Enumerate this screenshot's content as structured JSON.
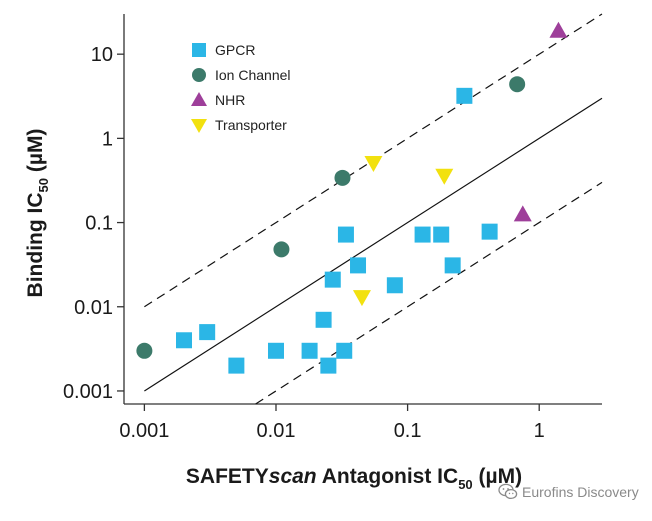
{
  "chart_data": {
    "type": "scatter",
    "xlabel": {
      "prefix": "SAFETY",
      "italic": "scan",
      "middle": " Antagonist IC",
      "sub": "50",
      "suffix": " (µM)"
    },
    "ylabel": {
      "prefix": "Binding IC",
      "sub": "50",
      "suffix": " (µM)"
    },
    "x_scale": "log",
    "y_scale": "log",
    "xlim": [
      0.0007,
      3
    ],
    "ylim": [
      0.0007,
      30
    ],
    "x_ticks": [
      0.001,
      0.01,
      0.1,
      1
    ],
    "x_tick_labels": [
      "0.001",
      "0.01",
      "0.1",
      "1"
    ],
    "y_ticks": [
      0.001,
      0.01,
      0.1,
      1,
      10
    ],
    "y_tick_labels": [
      "0.001",
      "0.01",
      "0.1",
      "1",
      "10"
    ],
    "legend_position": "top-left",
    "reference_lines": [
      {
        "style": "solid",
        "y_over_x": 1
      },
      {
        "style": "dashed",
        "y_over_x": 10
      },
      {
        "style": "dashed",
        "y_over_x": 0.1
      }
    ],
    "series": [
      {
        "name": "GPCR",
        "marker": "square",
        "color": "#2BB6E6",
        "points": [
          [
            0.002,
            0.004
          ],
          [
            0.003,
            0.005
          ],
          [
            0.005,
            0.002
          ],
          [
            0.01,
            0.003
          ],
          [
            0.018,
            0.003
          ],
          [
            0.023,
            0.007
          ],
          [
            0.025,
            0.002
          ],
          [
            0.027,
            0.021
          ],
          [
            0.033,
            0.003
          ],
          [
            0.034,
            0.072
          ],
          [
            0.042,
            0.031
          ],
          [
            0.08,
            0.018
          ],
          [
            0.13,
            0.072
          ],
          [
            0.18,
            0.072
          ],
          [
            0.22,
            0.031
          ],
          [
            0.27,
            3.2
          ],
          [
            0.42,
            0.078
          ]
        ]
      },
      {
        "name": "Ion Channel",
        "marker": "circle",
        "color": "#3C7A6A",
        "points": [
          [
            0.001,
            0.003
          ],
          [
            0.011,
            0.048
          ],
          [
            0.032,
            0.34
          ],
          [
            0.68,
            4.4
          ]
        ]
      },
      {
        "name": "NHR",
        "marker": "triangle-up",
        "color": "#9E3F9A",
        "points": [
          [
            0.75,
            0.125
          ],
          [
            1.4,
            19
          ]
        ]
      },
      {
        "name": "Transporter",
        "marker": "triangle-down",
        "color": "#F2E10F",
        "points": [
          [
            0.045,
            0.013
          ],
          [
            0.055,
            0.51
          ],
          [
            0.19,
            0.36
          ]
        ]
      }
    ]
  },
  "watermark": {
    "text": "Eurofins Discovery",
    "icon": "wechat-icon"
  }
}
